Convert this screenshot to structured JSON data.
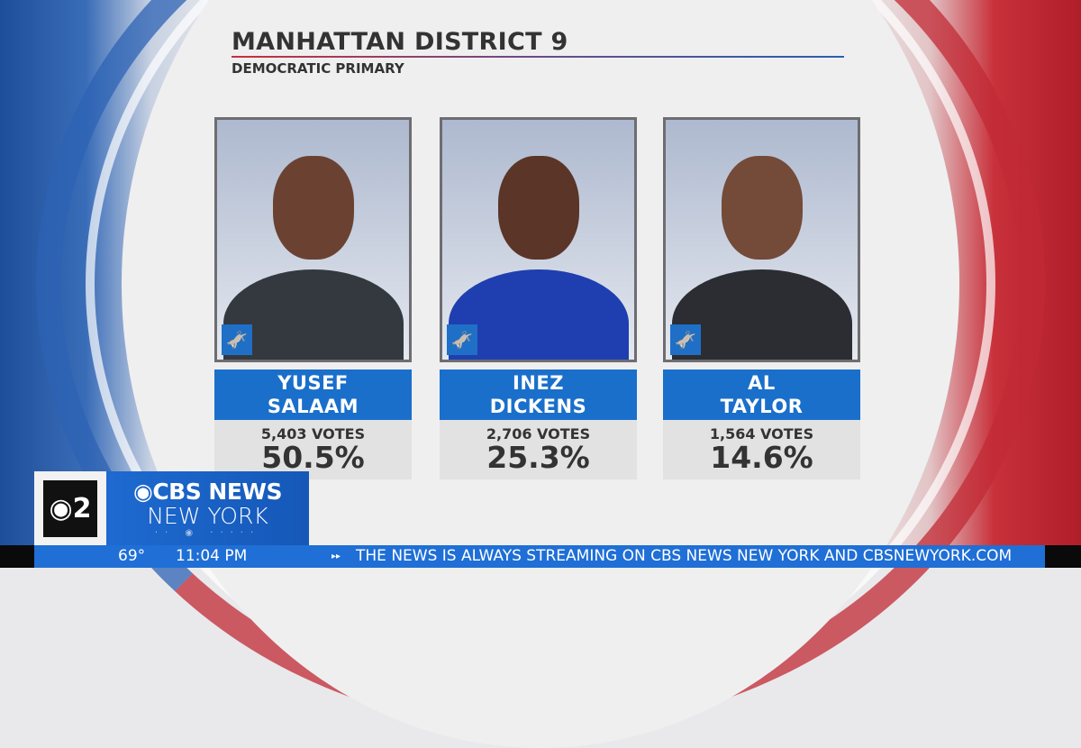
{
  "header": {
    "title": "MANHATTAN DISTRICT 9",
    "subtitle": "DEMOCRATIC PRIMARY"
  },
  "candidates": [
    {
      "first": "YUSEF",
      "last": "SALAAM",
      "votes": "5,403 VOTES",
      "percent": "50.5%",
      "party_icon": "democratic-donkey-icon"
    },
    {
      "first": "INEZ",
      "last": "DICKENS",
      "votes": "2,706 VOTES",
      "percent": "25.3%",
      "party_icon": "democratic-donkey-icon"
    },
    {
      "first": "AL",
      "last": "TAYLOR",
      "votes": "1,564 VOTES",
      "percent": "14.6%",
      "party_icon": "democratic-donkey-icon"
    }
  ],
  "branding": {
    "channel": "2",
    "network": "CBS NEWS",
    "city": "NEW YORK"
  },
  "ticker": {
    "temperature": "69°",
    "time": "11:04 PM",
    "message": "THE NEWS IS ALWAYS STREAMING ON CBS NEWS NEW YORK AND CBSNEWYORK.COM"
  },
  "colors": {
    "blue": "#1a6fcb",
    "red": "#c8303a"
  }
}
